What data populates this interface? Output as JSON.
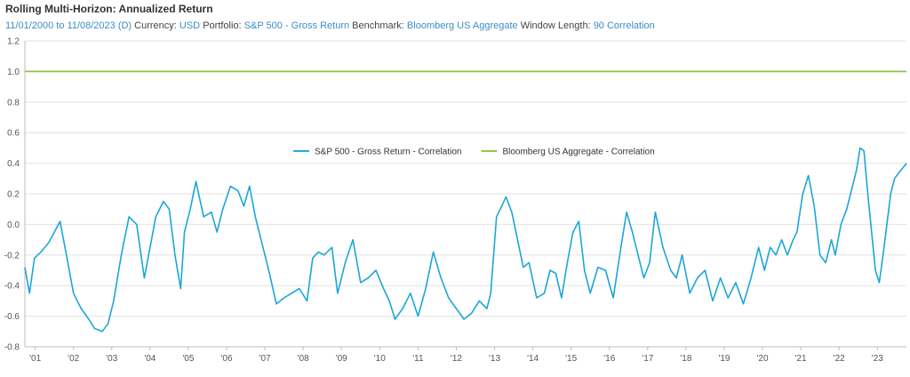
{
  "header": {
    "title": "Rolling Multi-Horizon: Annualized Return",
    "date_range": "11/01/2000 to 11/08/2023 (D)",
    "currency_label": "Currency:",
    "currency": "USD",
    "portfolio_label": "Portfolio:",
    "portfolio": "S&P 500 - Gross Return",
    "benchmark_label": "Benchmark:",
    "benchmark": "Bloomberg US Aggregate",
    "window_label": "Window Length:",
    "window": "90 Correlation"
  },
  "colors": {
    "sp500": "#1ca6d8",
    "agg": "#8dc63f",
    "accent_text": "#3c8dc5"
  },
  "chart_data": {
    "type": "line",
    "ylim": [
      -0.8,
      1.2
    ],
    "yticks": [
      "1.2",
      "1.0",
      "0.8",
      "0.6",
      "0.4",
      "0.2",
      "0.0",
      "-0.2",
      "-0.4",
      "-0.6",
      "-0.8"
    ],
    "xlim": [
      2000.83,
      2023.86
    ],
    "xticks": [
      "'01",
      "'02",
      "'03",
      "'04",
      "'05",
      "'06",
      "'07",
      "'08",
      "'09",
      "'10",
      "'11",
      "'12",
      "'13",
      "'14",
      "'15",
      "'16",
      "'17",
      "'18",
      "'19",
      "'20",
      "'21",
      "'22",
      "'23"
    ],
    "legend_position": "top-center",
    "series": [
      {
        "name": "S&P 500 - Gross Return - Correlation",
        "color": "#1ca6d8",
        "x": [
          2000.83,
          2000.95,
          2001.08,
          2001.25,
          2001.45,
          2001.6,
          2001.75,
          2001.9,
          2002.1,
          2002.3,
          2002.5,
          2002.65,
          2002.85,
          2003.0,
          2003.15,
          2003.35,
          2003.55,
          2003.75,
          2003.95,
          2004.1,
          2004.25,
          2004.45,
          2004.6,
          2004.75,
          2004.9,
          2005.0,
          2005.15,
          2005.3,
          2005.5,
          2005.7,
          2005.85,
          2006.0,
          2006.2,
          2006.4,
          2006.55,
          2006.7,
          2006.85,
          2007.0,
          2007.2,
          2007.4,
          2007.6,
          2007.8,
          2008.0,
          2008.2,
          2008.35,
          2008.5,
          2008.65,
          2008.85,
          2009.0,
          2009.2,
          2009.4,
          2009.6,
          2009.8,
          2010.0,
          2010.2,
          2010.35,
          2010.5,
          2010.7,
          2010.9,
          2011.1,
          2011.3,
          2011.5,
          2011.7,
          2011.9,
          2012.1,
          2012.3,
          2012.5,
          2012.7,
          2012.9,
          2013.0,
          2013.15,
          2013.25,
          2013.4,
          2013.55,
          2013.7,
          2013.85,
          2014.0,
          2014.2,
          2014.4,
          2014.55,
          2014.7,
          2014.85,
          2015.0,
          2015.15,
          2015.3,
          2015.45,
          2015.6,
          2015.8,
          2016.0,
          2016.2,
          2016.4,
          2016.55,
          2016.7,
          2016.85,
          2017.0,
          2017.15,
          2017.3,
          2017.5,
          2017.7,
          2017.85,
          2018.0,
          2018.2,
          2018.4,
          2018.6,
          2018.8,
          2019.0,
          2019.2,
          2019.4,
          2019.6,
          2019.8,
          2020.0,
          2020.15,
          2020.3,
          2020.45,
          2020.6,
          2020.75,
          2020.9,
          2021.0,
          2021.15,
          2021.3,
          2021.45,
          2021.6,
          2021.75,
          2021.9,
          2022.0,
          2022.15,
          2022.3,
          2022.45,
          2022.55,
          2022.65,
          2022.75,
          2022.85,
          2022.95,
          2023.05,
          2023.15,
          2023.25,
          2023.35,
          2023.45,
          2023.55,
          2023.7,
          2023.8,
          2023.86
        ],
        "y": [
          -0.28,
          -0.45,
          -0.22,
          -0.18,
          -0.12,
          -0.05,
          0.02,
          -0.18,
          -0.45,
          -0.55,
          -0.62,
          -0.68,
          -0.7,
          -0.65,
          -0.5,
          -0.2,
          0.05,
          0.0,
          -0.35,
          -0.15,
          0.05,
          0.15,
          0.1,
          -0.2,
          -0.42,
          -0.05,
          0.1,
          0.28,
          0.05,
          0.08,
          -0.05,
          0.1,
          0.25,
          0.22,
          0.12,
          0.25,
          0.05,
          -0.1,
          -0.3,
          -0.52,
          -0.48,
          -0.45,
          -0.42,
          -0.5,
          -0.22,
          -0.18,
          -0.2,
          -0.15,
          -0.45,
          -0.25,
          -0.1,
          -0.38,
          -0.35,
          -0.3,
          -0.42,
          -0.5,
          -0.62,
          -0.55,
          -0.45,
          -0.6,
          -0.42,
          -0.18,
          -0.35,
          -0.48,
          -0.55,
          -0.62,
          -0.58,
          -0.5,
          -0.55,
          -0.45,
          0.05,
          0.1,
          0.18,
          0.08,
          -0.1,
          -0.28,
          -0.25,
          -0.48,
          -0.45,
          -0.3,
          -0.32,
          -0.48,
          -0.25,
          -0.05,
          0.02,
          -0.3,
          -0.45,
          -0.28,
          -0.3,
          -0.48,
          -0.15,
          0.08,
          -0.05,
          -0.2,
          -0.35,
          -0.25,
          0.08,
          -0.15,
          -0.3,
          -0.35,
          -0.2,
          -0.45,
          -0.35,
          -0.3,
          -0.5,
          -0.35,
          -0.48,
          -0.38,
          -0.52,
          -0.35,
          -0.15,
          -0.3,
          -0.15,
          -0.2,
          -0.1,
          -0.2,
          -0.1,
          -0.05,
          0.2,
          0.32,
          0.12,
          -0.2,
          -0.25,
          -0.1,
          -0.2,
          0.0,
          0.1,
          0.25,
          0.35,
          0.5,
          0.48,
          0.2,
          -0.05,
          -0.3,
          -0.38,
          -0.2,
          0.0,
          0.2,
          0.3,
          0.35,
          0.38,
          0.4
        ]
      },
      {
        "name": "Bloomberg US Aggregate - Correlation",
        "color": "#8dc63f",
        "x": [
          2000.83,
          2023.86
        ],
        "y": [
          1.0,
          1.0
        ]
      }
    ]
  }
}
